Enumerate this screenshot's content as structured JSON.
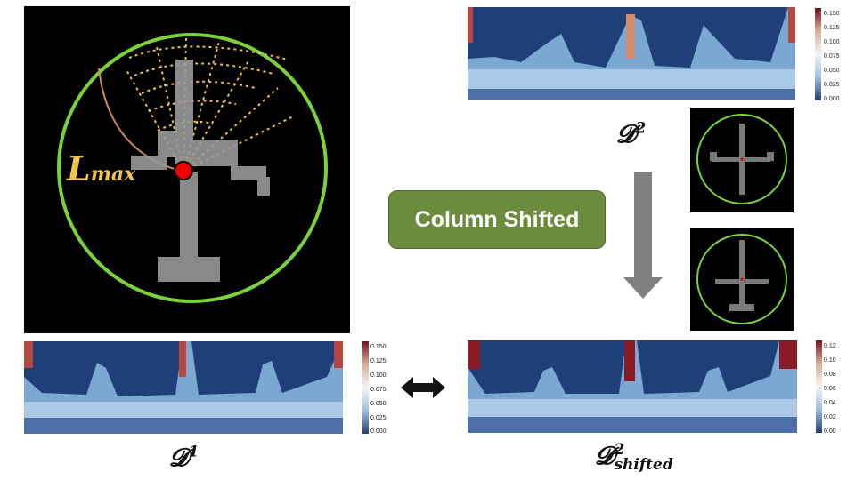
{
  "lmax_label": {
    "main": "L",
    "sub": "max"
  },
  "labels": {
    "d2": {
      "main": "𝓓",
      "sup": "2"
    },
    "d1": {
      "main": "𝓓",
      "sup": "1"
    },
    "d2_shifted": {
      "main": "𝓓",
      "sup": "2",
      "sub": "shifted"
    }
  },
  "badge_text": "Column Shifted",
  "colorbars": {
    "top_right": [
      "0.150",
      "0.125",
      "0.100",
      "0.075",
      "0.050",
      "0.025",
      "0.000"
    ],
    "bottom_left": [
      "0.150",
      "0.125",
      "0.100",
      "0.075",
      "0.050",
      "0.025",
      "0.000"
    ],
    "bottom_right": [
      "0.12",
      "0.10",
      "0.08",
      "0.06",
      "0.04",
      "0.02",
      "0.00"
    ]
  },
  "colors": {
    "circle": "#7ad23a",
    "rays": "#e8c34a",
    "lmax_text": "#f0c64a",
    "badge": "#6b8c3c",
    "arrow": "#808080",
    "heat_low": "#1f3f78",
    "heat_high": "#7a0c1e"
  }
}
